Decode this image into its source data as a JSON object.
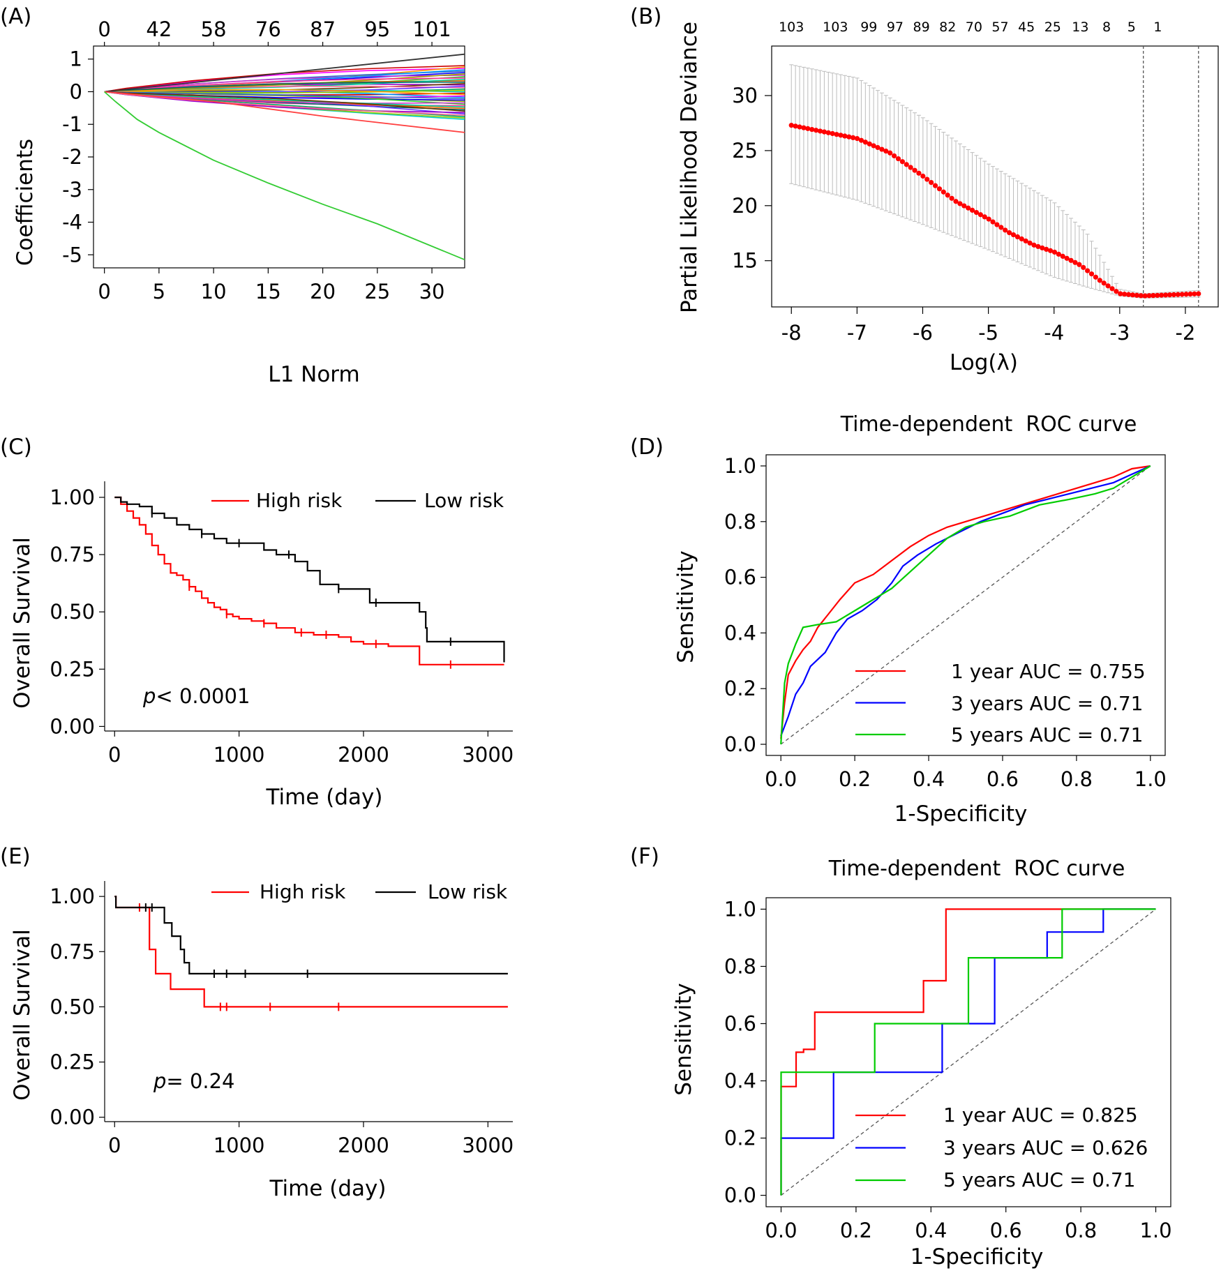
{
  "panel_labels": [
    "(A)",
    "(B)",
    "(C)",
    "(D)",
    "(E)",
    "(F)"
  ],
  "chart_data": [
    {
      "panel": "A",
      "type": "line",
      "title": "",
      "xlabel": "L1 Norm",
      "ylabel": "Coefficients",
      "xlim": [
        -1,
        33
      ],
      "ylim": [
        -5.4,
        1.4
      ],
      "xticks": [
        0,
        5,
        10,
        15,
        20,
        25,
        30
      ],
      "yticks": [
        1,
        0,
        -1,
        -2,
        -3,
        -4,
        -5
      ],
      "top_axis_values": [
        0,
        42,
        58,
        76,
        87,
        95,
        101
      ],
      "top_axis_positions": [
        0,
        5,
        10,
        15,
        20,
        25,
        30
      ],
      "n_background_paths": 40,
      "series": [
        {
          "name": "path-dark",
          "color": "#333333",
          "x": [
            0,
            33
          ],
          "y": [
            0,
            1.15
          ]
        },
        {
          "name": "path-red",
          "color": "#ff4040",
          "x": [
            0,
            10,
            20,
            33
          ],
          "y": [
            0,
            -0.3,
            -0.75,
            -1.25
          ]
        },
        {
          "name": "path-green",
          "color": "#33cc33",
          "x": [
            0,
            1,
            3,
            5,
            10,
            15,
            20,
            25,
            33
          ],
          "y": [
            0,
            -0.3,
            -0.85,
            -1.25,
            -2.1,
            -2.8,
            -3.45,
            -4.05,
            -5.15
          ]
        }
      ]
    },
    {
      "panel": "B",
      "type": "scatter",
      "title": "",
      "xlabel": "Log(λ)",
      "ylabel": "Partial Likelihood Deviance",
      "xlim": [
        -8.3,
        -1.5
      ],
      "ylim": [
        10.8,
        34.5
      ],
      "xticks": [
        -8,
        -7,
        -6,
        -5,
        -4,
        -3,
        -2
      ],
      "yticks": [
        30,
        25,
        20,
        15
      ],
      "top_axis_values": [
        103,
        103,
        99,
        97,
        89,
        82,
        70,
        57,
        45,
        25,
        13,
        8,
        5,
        1
      ],
      "top_axis_positions": [
        -8,
        -7.33,
        -6.82,
        -6.42,
        -6.02,
        -5.62,
        -5.22,
        -4.82,
        -4.42,
        -4.02,
        -3.6,
        -3.2,
        -2.82,
        -2.42
      ],
      "vlines": [
        -2.64,
        -1.8
      ],
      "lambda_min": -2.64,
      "lambda_1se": -1.8,
      "deviance_knots": {
        "x": [
          -8,
          -7,
          -6.5,
          -6,
          -5.5,
          -5,
          -4.7,
          -4.3,
          -4,
          -3.6,
          -3.3,
          -3,
          -2.64,
          -1.8
        ],
        "y": [
          27.3,
          26.1,
          24.8,
          22.7,
          20.4,
          18.8,
          17.6,
          16.4,
          15.8,
          14.6,
          13.2,
          12.0,
          11.8,
          12.0
        ]
      },
      "error_knots": {
        "x": [
          -8,
          -7,
          -6,
          -5,
          -4,
          -3.5,
          -3,
          -2.64,
          -1.8
        ],
        "lower": [
          22.0,
          20.5,
          18.3,
          16.0,
          13.5,
          12.6,
          11.8,
          11.6,
          11.7
        ],
        "upper": [
          32.8,
          31.6,
          28.0,
          23.8,
          20.3,
          17.5,
          12.4,
          12.0,
          12.3
        ]
      }
    },
    {
      "panel": "C",
      "type": "line",
      "title": "",
      "xlabel": "Time (day)",
      "ylabel": "Overall Survival",
      "xlim": [
        -80,
        3200
      ],
      "ylim": [
        -0.02,
        1.07
      ],
      "xticks": [
        0,
        1000,
        2000,
        3000
      ],
      "yticks": [
        "1.00",
        "0.75",
        "0.50",
        "0.25",
        "0.00"
      ],
      "annotation_p": "p",
      "annotation_rest": "< 0.0001",
      "series": [
        {
          "name": "High risk",
          "color": "#ff0000",
          "x": [
            0,
            50,
            100,
            150,
            200,
            250,
            300,
            350,
            400,
            450,
            500,
            550,
            600,
            650,
            700,
            750,
            800,
            850,
            900,
            950,
            1000,
            1100,
            1200,
            1300,
            1450,
            1600,
            1800,
            1900,
            2000,
            2200,
            2440,
            2450,
            3130
          ],
          "y": [
            1.0,
            0.97,
            0.94,
            0.91,
            0.88,
            0.84,
            0.79,
            0.75,
            0.71,
            0.67,
            0.66,
            0.64,
            0.61,
            0.59,
            0.56,
            0.54,
            0.52,
            0.51,
            0.49,
            0.48,
            0.47,
            0.46,
            0.45,
            0.43,
            0.41,
            0.4,
            0.39,
            0.37,
            0.36,
            0.35,
            0.35,
            0.27,
            0.27
          ],
          "censor_x": [
            600,
            900,
            1200,
            1500,
            1700,
            2100,
            2700
          ]
        },
        {
          "name": "Low risk",
          "color": "#000000",
          "x": [
            0,
            50,
            100,
            200,
            300,
            400,
            500,
            600,
            700,
            800,
            900,
            1000,
            1200,
            1300,
            1450,
            1550,
            1650,
            1800,
            2000,
            2050,
            2300,
            2450,
            2500,
            2510,
            3100,
            3130
          ],
          "y": [
            1.0,
            0.98,
            0.97,
            0.96,
            0.93,
            0.91,
            0.88,
            0.86,
            0.84,
            0.82,
            0.8,
            0.8,
            0.77,
            0.75,
            0.72,
            0.68,
            0.62,
            0.6,
            0.6,
            0.54,
            0.54,
            0.5,
            0.43,
            0.37,
            0.37,
            0.28
          ],
          "censor_x": [
            300,
            700,
            1000,
            1400,
            1800,
            2100,
            2700
          ]
        }
      ]
    },
    {
      "panel": "D",
      "type": "line",
      "title": "Time-dependent  ROC curve",
      "xlabel": "1-Specificity",
      "ylabel": "Sensitivity",
      "xlim": [
        -0.04,
        1.04
      ],
      "ylim": [
        -0.04,
        1.04
      ],
      "xticks": [
        "0.0",
        "0.2",
        "0.4",
        "0.6",
        "0.8",
        "1.0"
      ],
      "yticks": [
        "1.0",
        "0.8",
        "0.6",
        "0.4",
        "0.2",
        "0.0"
      ],
      "series": [
        {
          "name": "1 year AUC = 0.755",
          "color": "#ff0000",
          "x": [
            0,
            0.01,
            0.02,
            0.04,
            0.06,
            0.08,
            0.1,
            0.13,
            0.16,
            0.2,
            0.25,
            0.3,
            0.35,
            0.4,
            0.45,
            0.5,
            0.55,
            0.6,
            0.65,
            0.7,
            0.75,
            0.8,
            0.85,
            0.9,
            0.95,
            1.0
          ],
          "y": [
            0.02,
            0.15,
            0.25,
            0.3,
            0.34,
            0.37,
            0.42,
            0.47,
            0.52,
            0.58,
            0.61,
            0.66,
            0.71,
            0.75,
            0.78,
            0.8,
            0.82,
            0.84,
            0.86,
            0.88,
            0.9,
            0.92,
            0.94,
            0.96,
            0.99,
            1.0
          ]
        },
        {
          "name": "3 years AUC = 0.71",
          "color": "#0000ff",
          "x": [
            0,
            0.02,
            0.04,
            0.06,
            0.08,
            0.12,
            0.15,
            0.18,
            0.22,
            0.26,
            0.3,
            0.33,
            0.37,
            0.42,
            0.48,
            0.54,
            0.6,
            0.66,
            0.72,
            0.78,
            0.84,
            0.9,
            0.95,
            1.0
          ],
          "y": [
            0.03,
            0.1,
            0.18,
            0.22,
            0.28,
            0.33,
            0.4,
            0.45,
            0.48,
            0.52,
            0.58,
            0.64,
            0.68,
            0.72,
            0.76,
            0.8,
            0.83,
            0.86,
            0.88,
            0.9,
            0.92,
            0.94,
            0.97,
            1.0
          ]
        },
        {
          "name": "5 years AUC = 0.71",
          "color": "#00cc00",
          "x": [
            0,
            0.01,
            0.02,
            0.04,
            0.06,
            0.1,
            0.15,
            0.2,
            0.25,
            0.3,
            0.35,
            0.4,
            0.45,
            0.5,
            0.55,
            0.62,
            0.7,
            0.78,
            0.85,
            0.9,
            0.95,
            1.0
          ],
          "y": [
            0.0,
            0.22,
            0.29,
            0.36,
            0.42,
            0.43,
            0.44,
            0.48,
            0.52,
            0.56,
            0.62,
            0.68,
            0.74,
            0.78,
            0.8,
            0.82,
            0.86,
            0.88,
            0.9,
            0.92,
            0.96,
            1.0
          ]
        }
      ]
    },
    {
      "panel": "E",
      "type": "line",
      "title": "",
      "xlabel": "Time (day)",
      "ylabel": "Overall Survival",
      "xlim": [
        -80,
        3200
      ],
      "ylim": [
        -0.02,
        1.07
      ],
      "xticks": [
        0,
        1000,
        2000,
        3000
      ],
      "yticks": [
        "1.00",
        "0.75",
        "0.50",
        "0.25",
        "0.00"
      ],
      "annotation_p": "p",
      "annotation_rest": "= 0.24",
      "series": [
        {
          "name": "High risk",
          "color": "#ff0000",
          "x": [
            0,
            10,
            240,
            280,
            330,
            450,
            700,
            720,
            3160
          ],
          "y": [
            1.0,
            0.95,
            0.95,
            0.76,
            0.65,
            0.58,
            0.58,
            0.5,
            0.5
          ],
          "censor_x": [
            200,
            850,
            900,
            1250,
            1800
          ]
        },
        {
          "name": "Low risk",
          "color": "#000000",
          "x": [
            0,
            10,
            350,
            400,
            460,
            530,
            560,
            600,
            3160
          ],
          "y": [
            1.0,
            0.95,
            0.95,
            0.88,
            0.82,
            0.76,
            0.7,
            0.65,
            0.65
          ],
          "censor_x": [
            250,
            300,
            800,
            900,
            1050,
            1550
          ]
        }
      ]
    },
    {
      "panel": "F",
      "type": "line",
      "title": "Time-dependent  ROC curve",
      "xlabel": "1-Specificity",
      "ylabel": "Sensitivity",
      "xlim": [
        -0.04,
        1.04
      ],
      "ylim": [
        -0.04,
        1.04
      ],
      "xticks": [
        "0.0",
        "0.2",
        "0.4",
        "0.6",
        "0.8",
        "1.0"
      ],
      "yticks": [
        "1.0",
        "0.8",
        "0.6",
        "0.4",
        "0.2",
        "0.0"
      ],
      "series": [
        {
          "name": "1 year AUC = 0.825",
          "color": "#ff0000",
          "x": [
            0,
            0,
            0.04,
            0.04,
            0.06,
            0.06,
            0.09,
            0.09,
            0.38,
            0.38,
            0.44,
            0.44,
            1.0
          ],
          "y": [
            0,
            0.38,
            0.38,
            0.5,
            0.5,
            0.51,
            0.51,
            0.64,
            0.64,
            0.75,
            0.75,
            1.0,
            1.0
          ]
        },
        {
          "name": "3 years AUC = 0.626",
          "color": "#0000ff",
          "x": [
            0,
            0,
            0.14,
            0.14,
            0.43,
            0.43,
            0.57,
            0.57,
            0.71,
            0.71,
            0.86,
            0.86,
            1.0
          ],
          "y": [
            0,
            0.2,
            0.2,
            0.43,
            0.43,
            0.6,
            0.6,
            0.83,
            0.83,
            0.92,
            0.92,
            1.0,
            1.0
          ]
        },
        {
          "name": "5 years AUC = 0.71",
          "color": "#00cc00",
          "x": [
            0,
            0,
            0.25,
            0.25,
            0.5,
            0.5,
            0.75,
            0.75,
            1.0
          ],
          "y": [
            0,
            0.43,
            0.43,
            0.6,
            0.6,
            0.83,
            0.83,
            1.0,
            1.0
          ]
        }
      ]
    }
  ]
}
